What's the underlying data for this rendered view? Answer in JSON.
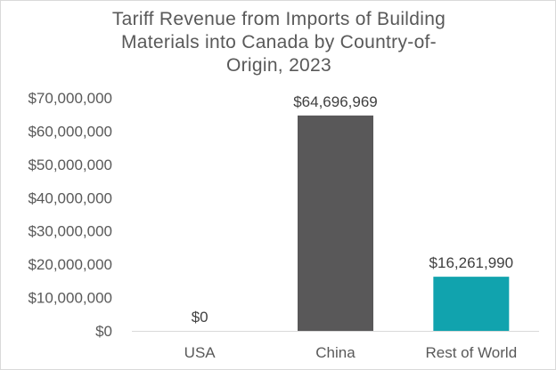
{
  "chart_data": {
    "type": "bar",
    "title": "Tariff Revenue from Imports of Building Materials into Canada by Country-of-Origin, 2023",
    "title_lines": [
      "Tariff Revenue from Imports of Building",
      "Materials into Canada by Country-of-",
      "Origin, 2023"
    ],
    "categories": [
      "USA",
      "China",
      "Rest of World"
    ],
    "values": [
      0,
      64696969,
      16261990
    ],
    "data_labels": [
      "$0",
      "$64,696,969",
      "$16,261,990"
    ],
    "bar_colors": [
      "#595959",
      "#595859",
      "#11a3ae"
    ],
    "ylim": [
      0,
      70000000
    ],
    "y_ticks": [
      0,
      10000000,
      20000000,
      30000000,
      40000000,
      50000000,
      60000000,
      70000000
    ],
    "y_tick_labels": [
      "$0",
      "$10,000,000",
      "$20,000,000",
      "$30,000,000",
      "$40,000,000",
      "$50,000,000",
      "$60,000,000",
      "$70,000,000"
    ],
    "xlabel": "",
    "ylabel": "",
    "grid": false,
    "legend": "none"
  }
}
